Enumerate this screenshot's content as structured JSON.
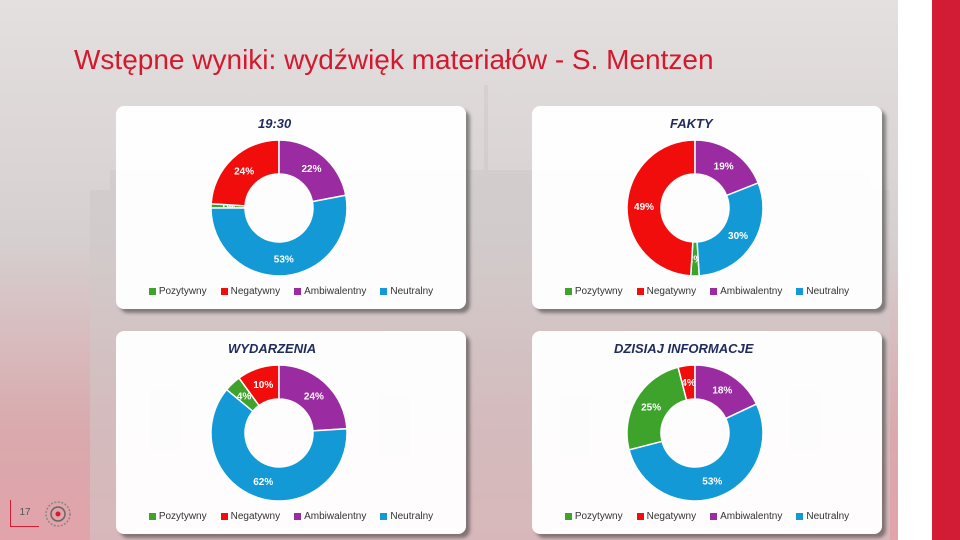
{
  "title": "Wstępne wyniki: wydźwięk materiałów - S. Mentzen",
  "page_number": "17",
  "colors": {
    "pozytywny": "#3da32b",
    "negatywny": "#f20d0d",
    "ambiwalentny": "#9b2ba0",
    "neutralny": "#139ad6",
    "accent": "#d21b34"
  },
  "legend": [
    "Pozytywny",
    "Negatywny",
    "Ambiwalentny",
    "Neutralny"
  ],
  "chart_data": [
    {
      "type": "pie",
      "title": "19:30",
      "categories": [
        "Pozytywny",
        "Negatywny",
        "Ambiwalentny",
        "Neutralny"
      ],
      "values": [
        1,
        24,
        22,
        53
      ],
      "labels": [
        "1%",
        "24%",
        "22%",
        "53%"
      ]
    },
    {
      "type": "pie",
      "title": "FAKTY",
      "categories": [
        "Pozytywny",
        "Negatywny",
        "Ambiwalentny",
        "Neutralny"
      ],
      "values": [
        2,
        49,
        19,
        30
      ],
      "labels": [
        "2%",
        "49%",
        "19%",
        "30%"
      ]
    },
    {
      "type": "pie",
      "title": "WYDARZENIA",
      "categories": [
        "Pozytywny",
        "Negatywny",
        "Ambiwalentny",
        "Neutralny"
      ],
      "values": [
        4,
        10,
        24,
        62
      ],
      "labels": [
        "4%",
        "10%",
        "24%",
        "62%"
      ]
    },
    {
      "type": "pie",
      "title": "DZISIAJ INFORMACJE",
      "categories": [
        "Pozytywny",
        "Negatywny",
        "Ambiwalentny",
        "Neutralny"
      ],
      "values": [
        25,
        4,
        18,
        53
      ],
      "labels": [
        "25%",
        "4%",
        "18%",
        "53%"
      ]
    }
  ]
}
